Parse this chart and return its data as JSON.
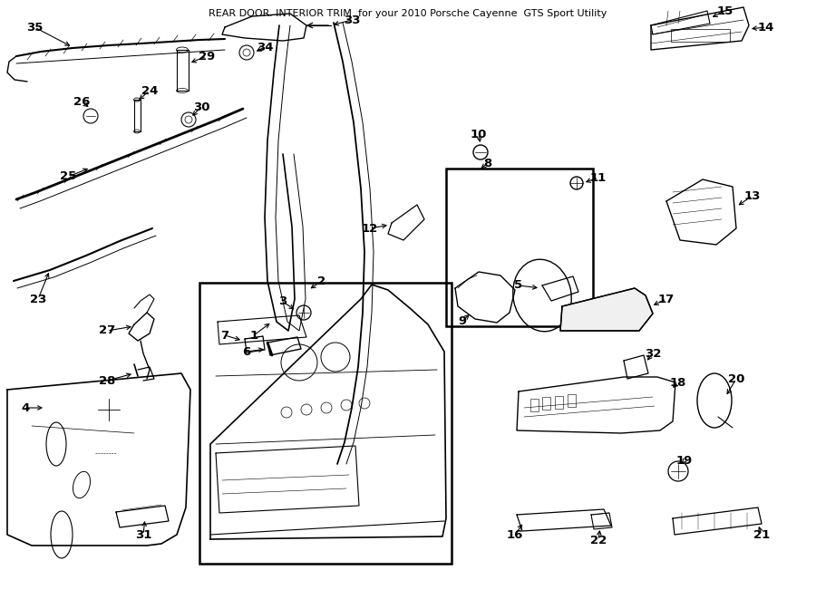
{
  "title": "REAR DOOR. INTERIOR TRIM. for your 2010 Porsche Cayenne  GTS Sport Utility",
  "bg_color": "#ffffff",
  "line_color": "#000000",
  "fig_width": 9.0,
  "fig_height": 6.61
}
